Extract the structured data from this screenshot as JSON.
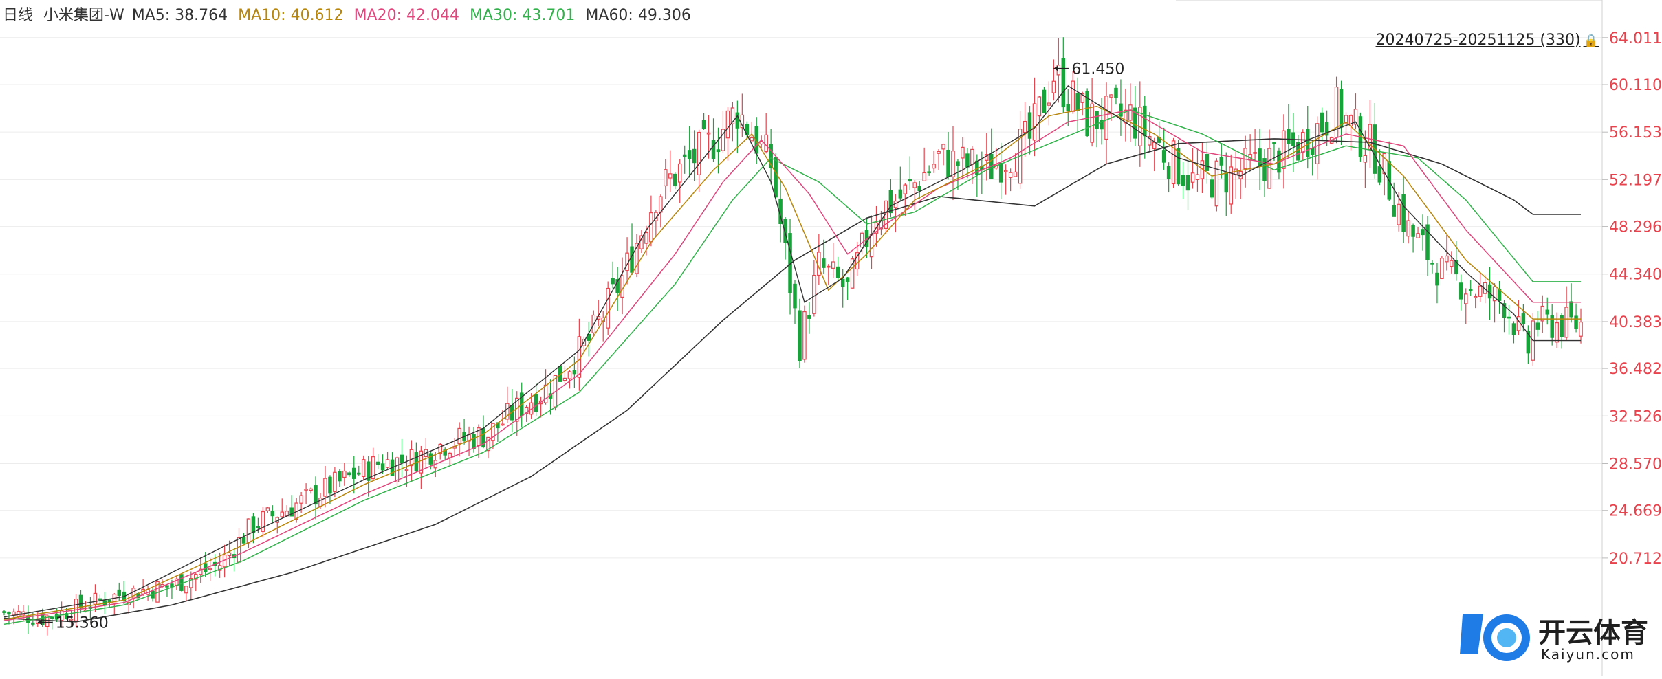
{
  "header": {
    "period": "日线",
    "stock": "小米集团-W",
    "ma5": "MA5: 38.764",
    "ma10": "MA10: 40.612",
    "ma20": "MA20: 42.044",
    "ma30": "MA30: 43.701",
    "ma60": "MA60: 49.306"
  },
  "range_label": "20240725-20251125 (330)",
  "colors": {
    "up": "#e8424d",
    "down": "#18a33a",
    "ma5": "#333333",
    "ma10": "#b8860b",
    "ma20": "#e0457b",
    "ma30": "#32b24b",
    "ma60": "#333333",
    "axis_text": "#e8424d",
    "grid": "#ececec"
  },
  "logo": {
    "cn": "开云体育",
    "en": "Kaiyun.com"
  },
  "chart_data": {
    "type": "candlestick",
    "title": "小米集团-W",
    "period": "日线",
    "date_range": "20240725-20251125",
    "bar_count": 330,
    "y_ticks": [
      "64.011",
      "60.110",
      "56.153",
      "52.197",
      "48.296",
      "44.340",
      "40.383",
      "36.482",
      "32.526",
      "28.570",
      "24.669",
      "20.712"
    ],
    "ylim": [
      13.5,
      66.0
    ],
    "grid": true,
    "annotations": [
      {
        "text": "61.450",
        "value": 61.45,
        "bar_index": 219
      },
      {
        "text": "15.360",
        "value": 15.36,
        "bar_index": 7
      }
    ],
    "close_path": [
      [
        0,
        16.2
      ],
      [
        8,
        15.7
      ],
      [
        14,
        16.4
      ],
      [
        25,
        17.8
      ],
      [
        35,
        18.4
      ],
      [
        45,
        20.2
      ],
      [
        52,
        23.5
      ],
      [
        60,
        25.0
      ],
      [
        70,
        27.0
      ],
      [
        78,
        28.6
      ],
      [
        85,
        28.9
      ],
      [
        92,
        30.3
      ],
      [
        101,
        31.0
      ],
      [
        108,
        33.4
      ],
      [
        114,
        35.0
      ],
      [
        122,
        38.8
      ],
      [
        129,
        44.0
      ],
      [
        136,
        51.0
      ],
      [
        141,
        53.0
      ],
      [
        147,
        55.0
      ],
      [
        153,
        58.0
      ],
      [
        160,
        53.5
      ],
      [
        166,
        38.5
      ],
      [
        170,
        45.0
      ],
      [
        176,
        43.0
      ],
      [
        182,
        49.5
      ],
      [
        188,
        51.0
      ],
      [
        195,
        54.0
      ],
      [
        205,
        53.0
      ],
      [
        214,
        55.5
      ],
      [
        219,
        61.0
      ],
      [
        226,
        57.2
      ],
      [
        235,
        57.5
      ],
      [
        242,
        54.5
      ],
      [
        248,
        52.0
      ],
      [
        255,
        52.5
      ],
      [
        262,
        53.5
      ],
      [
        270,
        55.0
      ],
      [
        278,
        58.0
      ],
      [
        286,
        54.5
      ],
      [
        293,
        48.0
      ],
      [
        300,
        44.5
      ],
      [
        307,
        43.0
      ],
      [
        313,
        42.0
      ],
      [
        318,
        38.0
      ],
      [
        319,
        40.2
      ]
    ],
    "ma60_path": [
      [
        0,
        15.7
      ],
      [
        15,
        15.4
      ],
      [
        35,
        16.8
      ],
      [
        60,
        19.5
      ],
      [
        90,
        23.5
      ],
      [
        110,
        27.5
      ],
      [
        130,
        33.0
      ],
      [
        150,
        40.5
      ],
      [
        165,
        45.5
      ],
      [
        180,
        49.0
      ],
      [
        195,
        50.8
      ],
      [
        215,
        50.0
      ],
      [
        230,
        53.5
      ],
      [
        245,
        55.2
      ],
      [
        265,
        55.6
      ],
      [
        285,
        55.3
      ],
      [
        300,
        53.5
      ],
      [
        315,
        50.5
      ],
      [
        319,
        49.3
      ]
    ],
    "ma30_path": [
      [
        0,
        15.2
      ],
      [
        25,
        16.8
      ],
      [
        50,
        20.5
      ],
      [
        75,
        25.5
      ],
      [
        100,
        29.5
      ],
      [
        120,
        34.5
      ],
      [
        140,
        43.5
      ],
      [
        152,
        50.5
      ],
      [
        160,
        54.0
      ],
      [
        170,
        52.0
      ],
      [
        180,
        48.5
      ],
      [
        190,
        49.5
      ],
      [
        205,
        53.0
      ],
      [
        220,
        55.5
      ],
      [
        235,
        58.0
      ],
      [
        250,
        56.0
      ],
      [
        265,
        53.0
      ],
      [
        280,
        55.0
      ],
      [
        295,
        54.0
      ],
      [
        305,
        50.5
      ],
      [
        319,
        43.7
      ]
    ],
    "ma20_path": [
      [
        0,
        15.5
      ],
      [
        25,
        17.0
      ],
      [
        50,
        21.2
      ],
      [
        75,
        26.0
      ],
      [
        100,
        30.2
      ],
      [
        120,
        36.0
      ],
      [
        140,
        46.0
      ],
      [
        150,
        52.0
      ],
      [
        158,
        55.5
      ],
      [
        168,
        51.0
      ],
      [
        176,
        46.0
      ],
      [
        184,
        48.5
      ],
      [
        195,
        51.5
      ],
      [
        210,
        54.0
      ],
      [
        222,
        57.0
      ],
      [
        235,
        58.0
      ],
      [
        250,
        54.5
      ],
      [
        265,
        53.5
      ],
      [
        280,
        56.0
      ],
      [
        292,
        55.0
      ],
      [
        305,
        48.0
      ],
      [
        319,
        42.0
      ]
    ],
    "ma10_path": [
      [
        0,
        15.6
      ],
      [
        25,
        17.2
      ],
      [
        50,
        21.8
      ],
      [
        75,
        26.8
      ],
      [
        100,
        31.0
      ],
      [
        120,
        37.2
      ],
      [
        135,
        47.0
      ],
      [
        148,
        53.0
      ],
      [
        156,
        56.0
      ],
      [
        163,
        51.5
      ],
      [
        172,
        43.0
      ],
      [
        180,
        46.0
      ],
      [
        190,
        50.5
      ],
      [
        205,
        53.5
      ],
      [
        218,
        57.5
      ],
      [
        228,
        58.3
      ],
      [
        240,
        56.0
      ],
      [
        252,
        52.5
      ],
      [
        265,
        53.5
      ],
      [
        280,
        57.0
      ],
      [
        292,
        52.5
      ],
      [
        305,
        45.5
      ],
      [
        319,
        40.6
      ]
    ],
    "ma5_path": [
      [
        0,
        15.8
      ],
      [
        25,
        17.5
      ],
      [
        50,
        22.5
      ],
      [
        75,
        27.2
      ],
      [
        100,
        31.5
      ],
      [
        120,
        38.0
      ],
      [
        134,
        48.0
      ],
      [
        146,
        54.0
      ],
      [
        153,
        57.5
      ],
      [
        160,
        52.0
      ],
      [
        167,
        42.0
      ],
      [
        175,
        44.0
      ],
      [
        185,
        50.0
      ],
      [
        200,
        53.0
      ],
      [
        215,
        56.5
      ],
      [
        222,
        60.0
      ],
      [
        232,
        57.5
      ],
      [
        245,
        54.0
      ],
      [
        258,
        52.5
      ],
      [
        272,
        55.5
      ],
      [
        282,
        57.0
      ],
      [
        292,
        50.0
      ],
      [
        305,
        44.5
      ],
      [
        315,
        41.0
      ],
      [
        319,
        38.8
      ]
    ]
  }
}
